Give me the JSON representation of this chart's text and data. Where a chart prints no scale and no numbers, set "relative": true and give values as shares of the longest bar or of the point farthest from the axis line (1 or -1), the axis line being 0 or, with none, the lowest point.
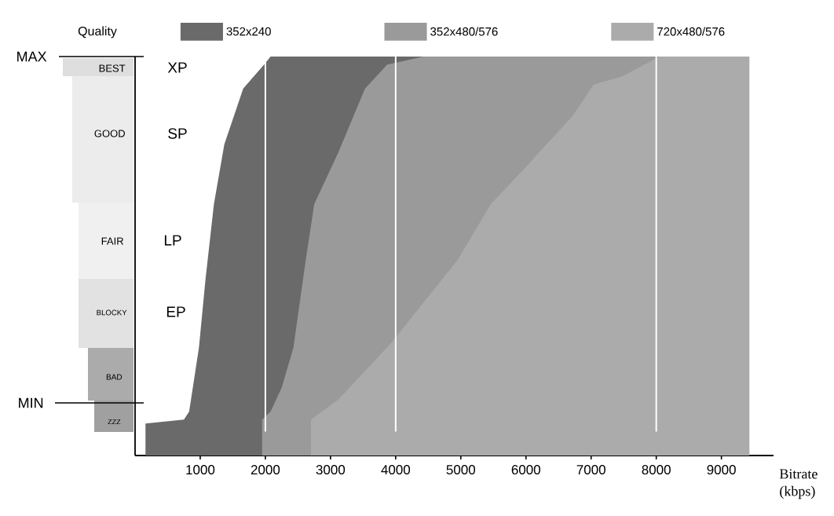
{
  "chart_data": {
    "type": "area",
    "relative": true,
    "xlabel": "Bitrate (kbps)",
    "ylabel": "Quality",
    "xlim": [
      0,
      9800
    ],
    "xticks": [
      1000,
      2000,
      3000,
      4000,
      5000,
      6000,
      7000,
      8000,
      9000
    ],
    "legend": "top",
    "series": [
      {
        "name": "352x240",
        "color": "#6a6a6a",
        "x": [
          160,
          750,
          830,
          980,
          1080,
          1210,
          1370,
          1660,
          1980,
          2080,
          2750,
          4430
        ],
        "values": [
          0.08,
          0.09,
          0.11,
          0.27,
          0.44,
          0.63,
          0.78,
          0.92,
          0.98,
          1,
          1,
          1
        ]
      },
      {
        "name": "352x480/576",
        "color": "#9a9a9a",
        "x": [
          1950,
          2080,
          2250,
          2430,
          2620,
          2750,
          3120,
          3530,
          3870,
          4430,
          8050
        ],
        "values": [
          0.09,
          0.11,
          0.17,
          0.27,
          0.49,
          0.63,
          0.76,
          0.92,
          0.98,
          1,
          1
        ]
      },
      {
        "name": "720x480/576",
        "color": "#ababab",
        "x": [
          2700,
          3120,
          3920,
          4950,
          5460,
          5980,
          6710,
          7040,
          7470,
          8050,
          9430
        ],
        "values": [
          0.09,
          0.14,
          0.28,
          0.49,
          0.63,
          0.72,
          0.85,
          0.93,
          0.95,
          1,
          1
        ]
      }
    ],
    "ref_lines": [
      {
        "axis": "x",
        "value": 2000,
        "color": "#ffffff"
      },
      {
        "axis": "x",
        "value": 4000,
        "color": "#ffffff"
      },
      {
        "axis": "x",
        "value": 8000,
        "color": "#ffffff"
      }
    ],
    "annotations": [
      "MAX",
      "MIN",
      "BEST",
      "GOOD",
      "FAIR",
      "BLOCKY",
      "BAD",
      "ZZZ",
      "XP",
      "SP",
      "LP",
      "EP"
    ]
  }
}
